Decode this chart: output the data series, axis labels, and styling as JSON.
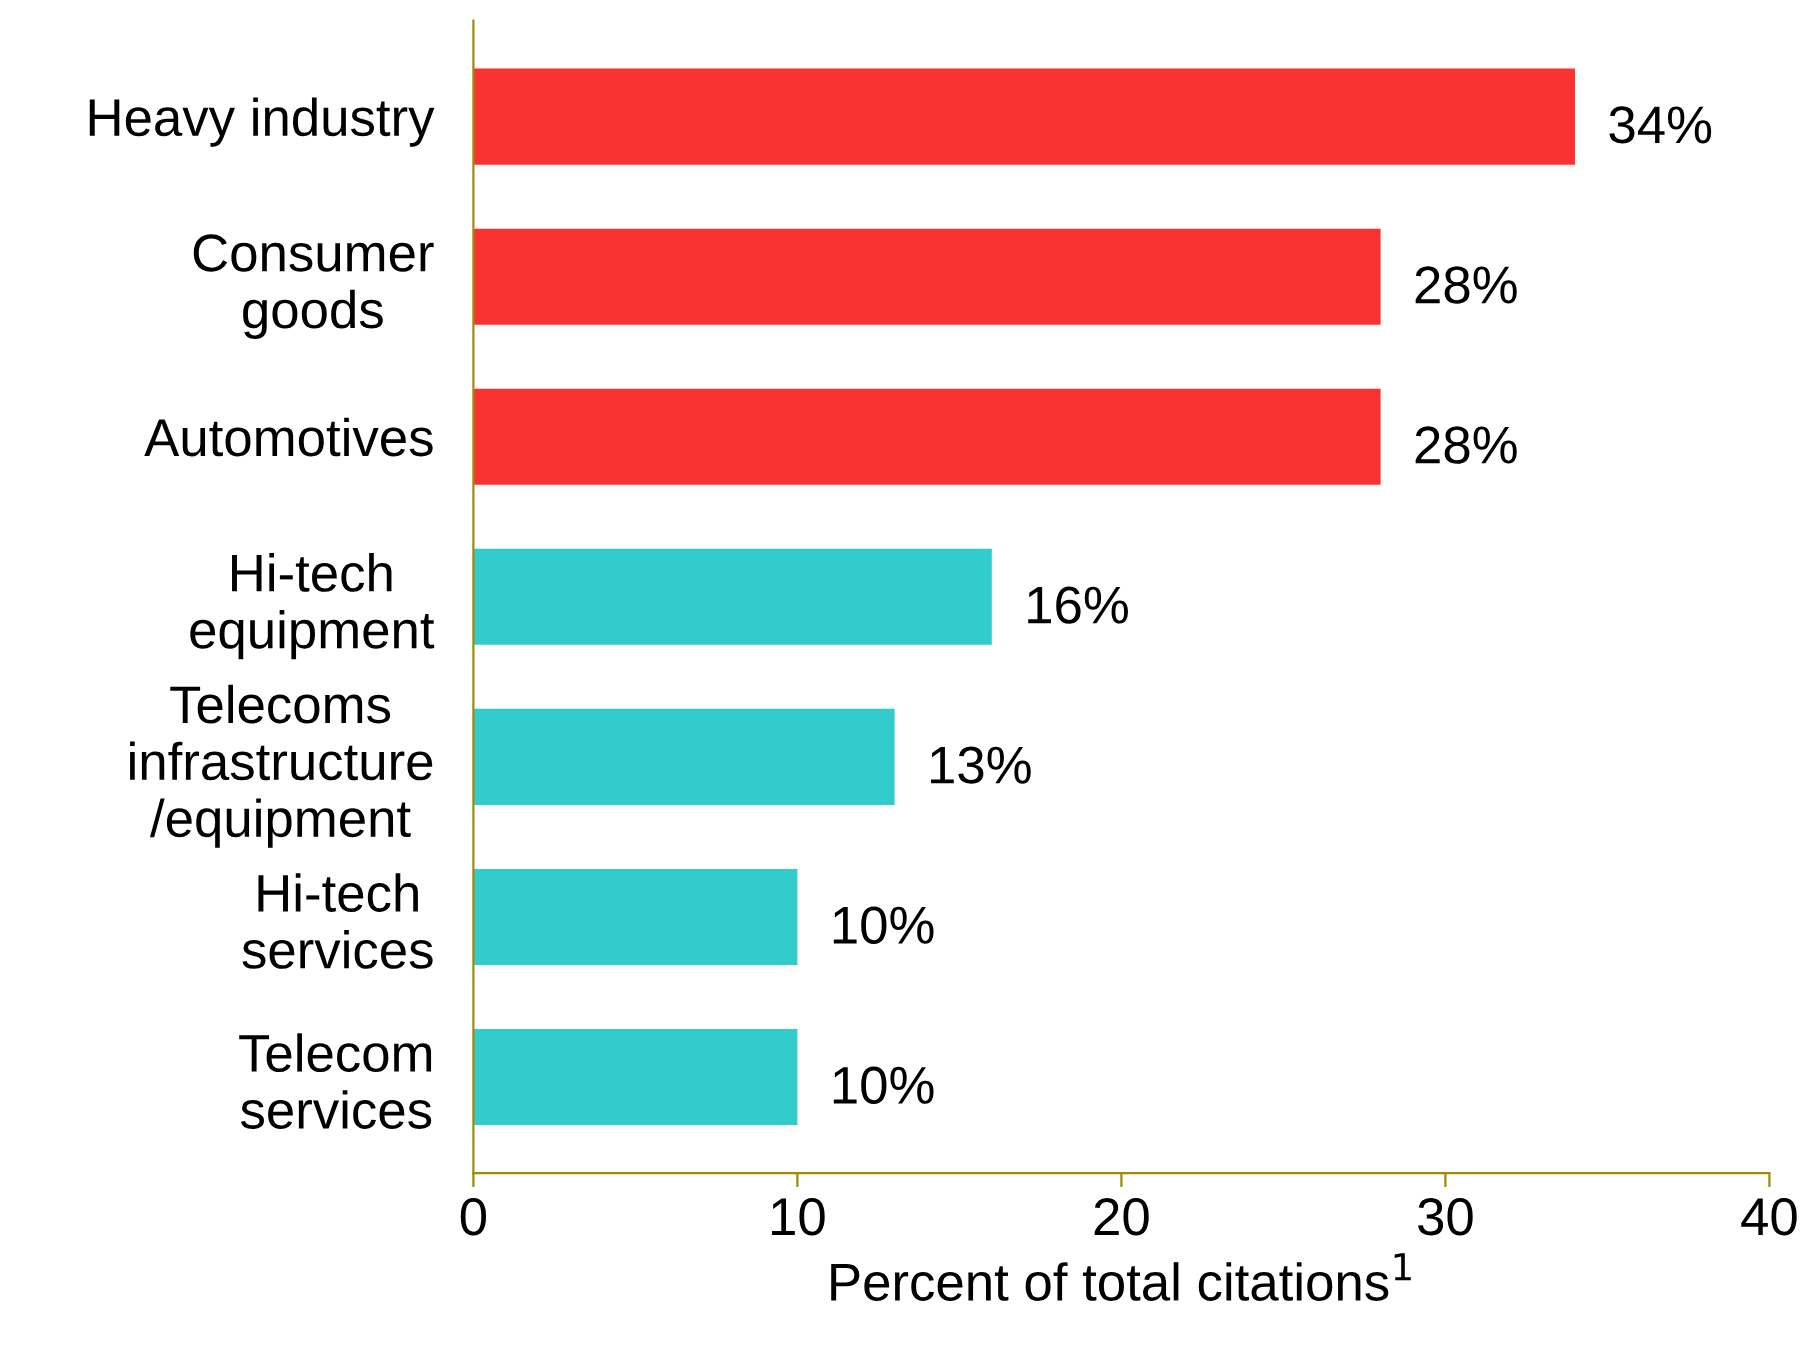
{
  "chart_data": {
    "type": "bar",
    "orientation": "horizontal",
    "categories": [
      "Heavy industry",
      "Consumer\ngoods",
      "Automotives",
      "Hi-tech\nequipment",
      "Telecoms\ninfrastructure\n/equipment",
      "Hi-tech\nservices",
      "Telecom\nservices"
    ],
    "values": [
      34,
      28,
      28,
      16,
      13,
      10,
      10
    ],
    "colors": [
      "#f93232",
      "#f93232",
      "#f93232",
      "#33cccc",
      "#33cccc",
      "#33cccc",
      "#33cccc"
    ],
    "value_labels": [
      "34%",
      "28%",
      "28%",
      "16%",
      "13%",
      "10%",
      "10%"
    ],
    "xlabel": "Percent of total citations$^{1}$",
    "xlim": [
      0,
      40
    ],
    "xticks": [
      0,
      10,
      20,
      30,
      40
    ],
    "grid": false,
    "legend": false
  }
}
